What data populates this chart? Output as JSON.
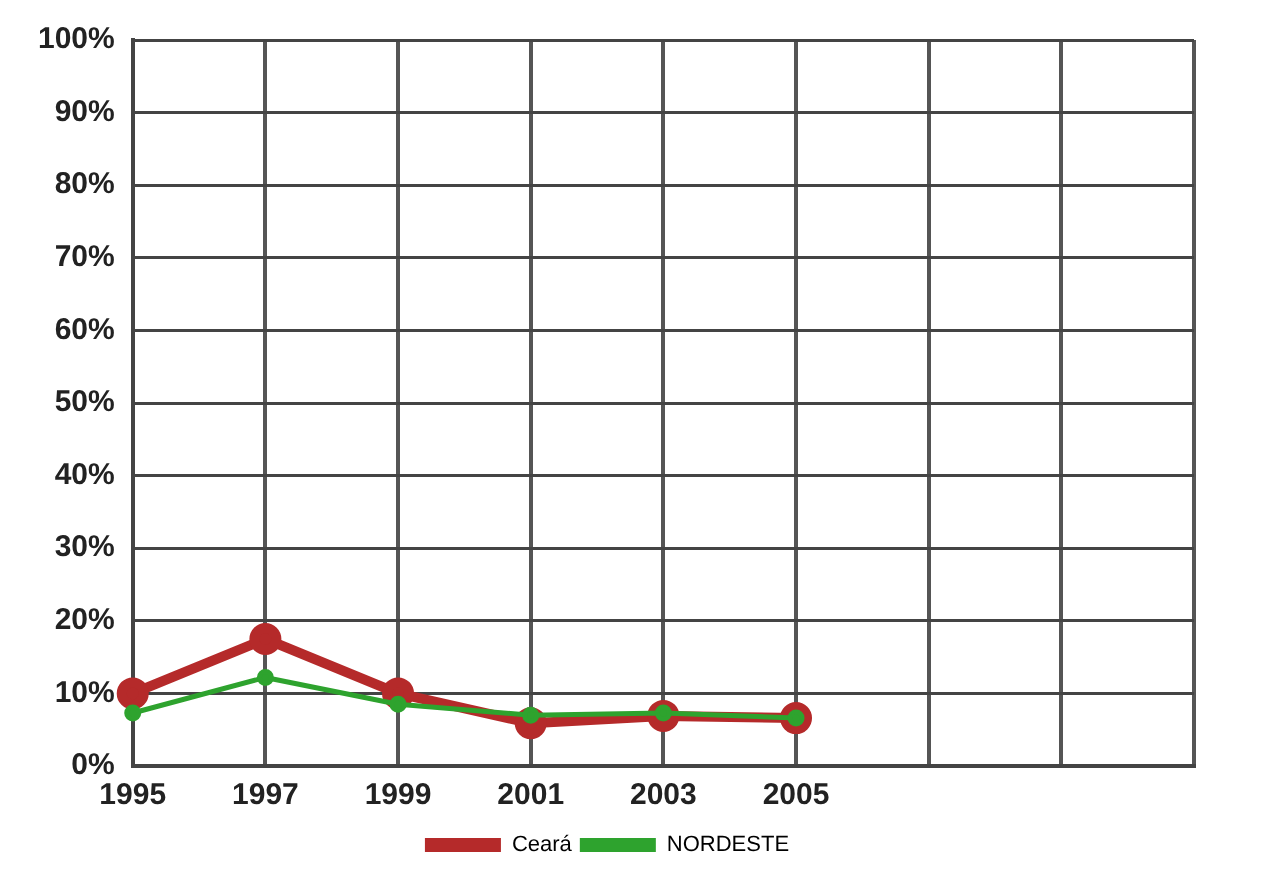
{
  "chart_data": {
    "type": "line",
    "categories": [
      "1995",
      "1997",
      "1999",
      "2001",
      "2003",
      "2005",
      null,
      null,
      null
    ],
    "series": [
      {
        "name": "Ceará",
        "color": "#b52a2a",
        "values": [
          10,
          17.5,
          10,
          5.9,
          6.9,
          6.6,
          null,
          null,
          null
        ]
      },
      {
        "name": "NORDESTE",
        "color": "#2ea32e",
        "values": [
          7.3,
          12.2,
          8.5,
          7,
          7.3,
          6.6,
          null,
          null,
          null
        ]
      }
    ],
    "ylim": [
      0,
      100
    ],
    "yticks": [
      {
        "value": 0,
        "label": "0%"
      },
      {
        "value": 10,
        "label": "10%"
      },
      {
        "value": 20,
        "label": "20%"
      },
      {
        "value": 30,
        "label": "30%"
      },
      {
        "value": 40,
        "label": "40%"
      },
      {
        "value": 50,
        "label": "50%"
      },
      {
        "value": 60,
        "label": "60%"
      },
      {
        "value": 70,
        "label": "70%"
      },
      {
        "value": 80,
        "label": "80%"
      },
      {
        "value": 90,
        "label": "90%"
      },
      {
        "value": 100,
        "label": "100%"
      }
    ],
    "grid": true,
    "legend": "bottom",
    "marker": "circle",
    "line_style": "solid"
  }
}
